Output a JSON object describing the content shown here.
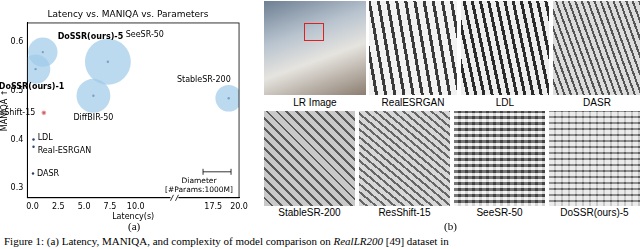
{
  "chart_data": {
    "type": "bubble",
    "title": "Latency vs. MANIQA vs. Parameters",
    "x_label": "Latency(s)",
    "y_label": "MANIQA ↑",
    "xlim": [
      -0.5,
      20
    ],
    "ylim": [
      0.28,
      0.64
    ],
    "xticks": [
      {
        "value": 0,
        "label": "0.0"
      },
      {
        "value": 2.5,
        "label": "2.5"
      },
      {
        "value": 5,
        "label": "5.0"
      },
      {
        "value": 7.5,
        "label": "7.5"
      },
      {
        "value": 10,
        "label": "10.0"
      },
      {
        "value": 17.5,
        "label": "17.5"
      },
      {
        "value": 20,
        "label": "20.0"
      }
    ],
    "yticks": [
      0.3,
      0.4,
      0.5,
      0.6
    ],
    "grid": false,
    "data_labels": true,
    "size_legend": {
      "title": "Diameter",
      "label": "[#Params:1000M]",
      "size": 1000
    },
    "series": [
      {
        "name": "DoSSR(ours)-5",
        "color": "#9ecae9",
        "x": 1.0,
        "y": 0.58,
        "size": 1050
      },
      {
        "name": "DoSSR(ours)-1",
        "color": "#9ecae9",
        "x": 0.3,
        "y": 0.545,
        "size": 1050
      },
      {
        "name": "SeeSR-50",
        "color": "#9ecae9",
        "x": 7.3,
        "y": 0.56,
        "size": 1640
      },
      {
        "name": "DiffBIR-50",
        "color": "#9ecae9",
        "x": 5.9,
        "y": 0.49,
        "size": 1210
      },
      {
        "name": "StableSR-200",
        "color": "#9ecae9",
        "x": 19.0,
        "y": 0.485,
        "size": 950
      },
      {
        "name": "ResShift-15",
        "color": "#f08080",
        "x": 1.1,
        "y": 0.455,
        "size": 170
      },
      {
        "name": "LDL",
        "color": "#9ecae9",
        "x": 0.1,
        "y": 0.4,
        "size": 17
      },
      {
        "name": "Real-ESRGAN",
        "color": "#9ecae9",
        "x": 0.1,
        "y": 0.385,
        "size": 17
      },
      {
        "name": "DASR",
        "color": "#9ecae9",
        "x": 0.05,
        "y": 0.33,
        "size": 6
      }
    ]
  },
  "panel_labels": [
    "(a)",
    "(b)"
  ],
  "image_grid": {
    "row1": [
      "LR Image",
      "RealESRGAN",
      "LDL",
      "DASR"
    ],
    "row2": [
      "StableSR-200",
      "ResShift-15",
      "SeeSR-50",
      "DoSSR(ours)-5"
    ]
  },
  "caption": {
    "before": "Figure 1: (a) Latency, MANIQA, and complexity of model comparison on ",
    "emphasis": "RealLR200",
    "after": " [49] dataset in"
  }
}
